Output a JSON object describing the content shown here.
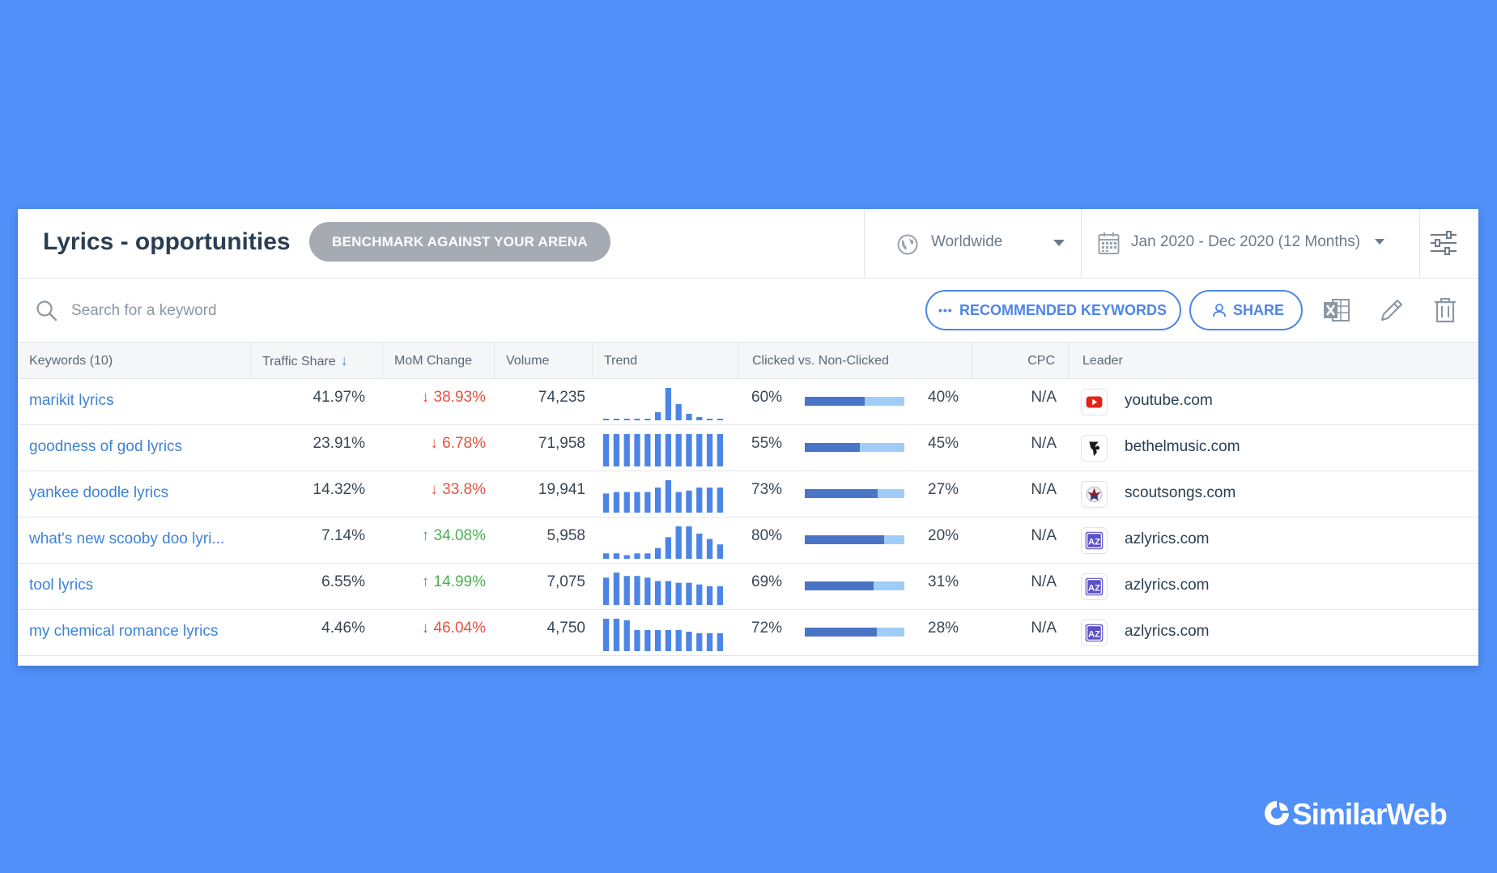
{
  "header": {
    "title": "Lyrics - opportunities",
    "benchmark_label": "BENCHMARK AGAINST YOUR ARENA",
    "country": "Worldwide",
    "date_range": "Jan 2020 - Dec 2020 (12 Months)"
  },
  "toolbar": {
    "search_placeholder": "Search for a keyword",
    "recommended_label": "RECOMMENDED KEYWORDS",
    "share_label": "SHARE"
  },
  "columns": {
    "keywords": "Keywords (10)",
    "traffic_share": "Traffic Share",
    "mom_change": "MoM Change",
    "volume": "Volume",
    "trend": "Trend",
    "clicked": "Clicked vs. Non-Clicked",
    "cpc": "CPC",
    "leader": "Leader"
  },
  "rows": [
    {
      "keyword": "marikit lyrics",
      "traffic_share": "41.97%",
      "mom_dir": "down",
      "mom": "38.93%",
      "volume": "74,235",
      "trend": [
        1,
        1,
        1,
        1,
        1,
        5,
        20,
        10,
        4,
        2,
        1,
        1
      ],
      "clicked": "60%",
      "non_clicked": "40%",
      "clicked_frac": 0.6,
      "cpc": "N/A",
      "leader": "youtube.com",
      "leader_icon": "youtube-icon"
    },
    {
      "keyword": "goodness of god lyrics",
      "traffic_share": "23.91%",
      "mom_dir": "down",
      "mom": "6.78%",
      "volume": "71,958",
      "trend": [
        20,
        20,
        20,
        20,
        20,
        20,
        20,
        20,
        20,
        20,
        20,
        20
      ],
      "clicked": "55%",
      "non_clicked": "45%",
      "clicked_frac": 0.55,
      "cpc": "N/A",
      "leader": "bethelmusic.com",
      "leader_icon": "bethelmusic-icon"
    },
    {
      "keyword": "yankee doodle lyrics",
      "traffic_share": "14.32%",
      "mom_dir": "down",
      "mom": "33.8%",
      "volume": "19,941",
      "trend": [
        13,
        14,
        14,
        14,
        14,
        17,
        22,
        14,
        15,
        17,
        17,
        17
      ],
      "clicked": "73%",
      "non_clicked": "27%",
      "clicked_frac": 0.73,
      "cpc": "N/A",
      "leader": "scoutsongs.com",
      "leader_icon": "scoutsongs-icon"
    },
    {
      "keyword": "what's new scooby doo lyri...",
      "traffic_share": "7.14%",
      "mom_dir": "up",
      "mom": "34.08%",
      "volume": "5,958",
      "trend": [
        3,
        3,
        2,
        3,
        3,
        6,
        12,
        18,
        18,
        14,
        11,
        8
      ],
      "clicked": "80%",
      "non_clicked": "20%",
      "clicked_frac": 0.8,
      "cpc": "N/A",
      "leader": "azlyrics.com",
      "leader_icon": "azlyrics-icon"
    },
    {
      "keyword": "tool lyrics",
      "traffic_share": "6.55%",
      "mom_dir": "up",
      "mom": "14.99%",
      "volume": "7,075",
      "trend": [
        16,
        19,
        17,
        17,
        16,
        14,
        14,
        13,
        13,
        12,
        11,
        11
      ],
      "clicked": "69%",
      "non_clicked": "31%",
      "clicked_frac": 0.69,
      "cpc": "N/A",
      "leader": "azlyrics.com",
      "leader_icon": "azlyrics-icon"
    },
    {
      "keyword": "my chemical romance lyrics",
      "traffic_share": "4.46%",
      "mom_dir": "down",
      "mom": "46.04%",
      "volume": "4,750",
      "trend": [
        20,
        20,
        19,
        13,
        13,
        13,
        13,
        13,
        12,
        11,
        11,
        11
      ],
      "clicked": "72%",
      "non_clicked": "28%",
      "clicked_frac": 0.72,
      "cpc": "N/A",
      "leader": "azlyrics.com",
      "leader_icon": "azlyrics-icon"
    }
  ],
  "branding": {
    "name": "SimilarWeb"
  },
  "colors": {
    "accent": "#4d85e6",
    "background": "#5090f8",
    "up": "#4caf50",
    "down": "#e8513f",
    "clicked": "#4a74c5",
    "non_clicked": "#a0cdf7"
  }
}
